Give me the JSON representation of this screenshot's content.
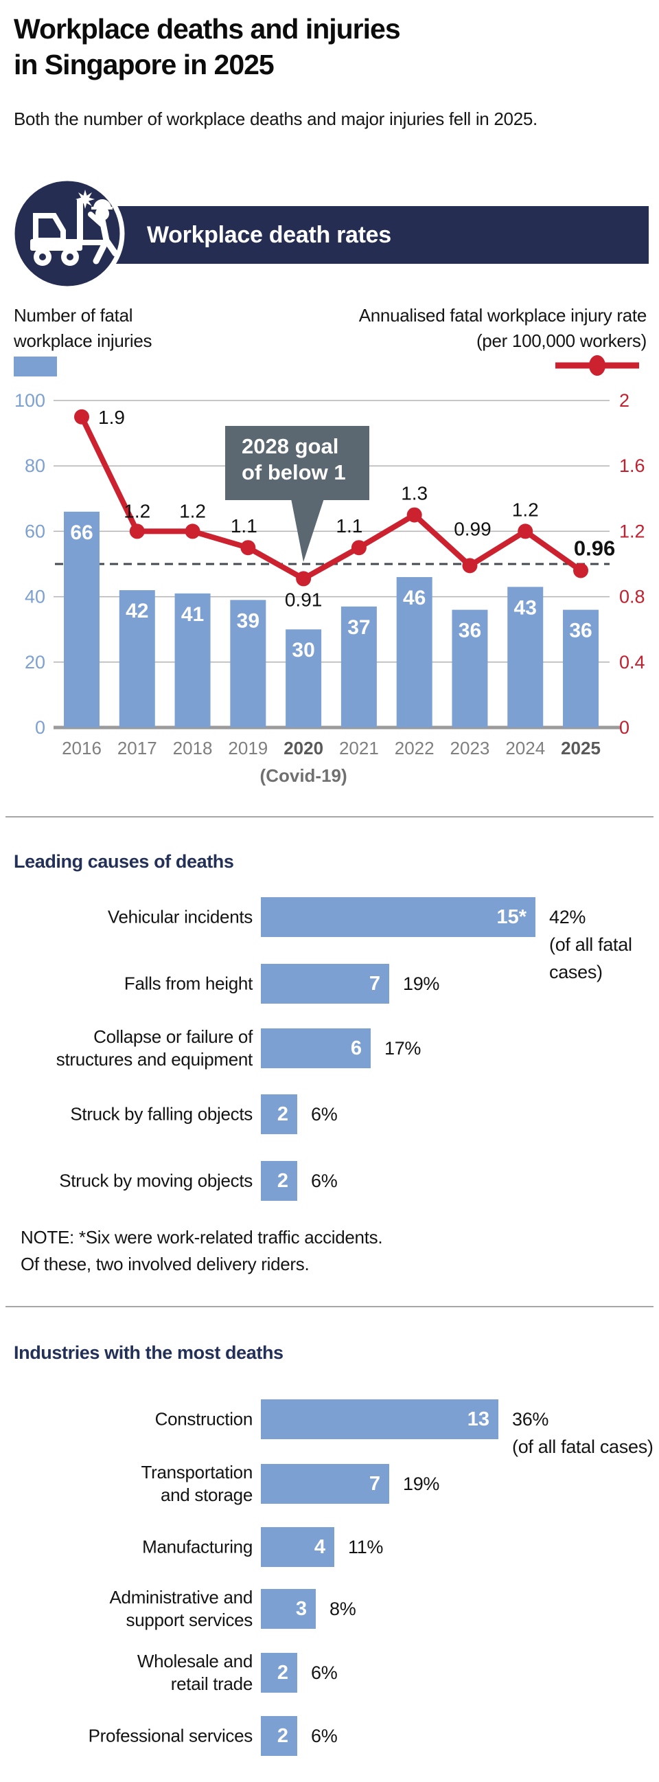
{
  "page": {
    "title": "Workplace deaths and injuries\nin Singapore in 2025",
    "subtitle": "Both the number of workplace deaths and major injuries fell in 2025.",
    "colors": {
      "navy": "#252e52",
      "heading_navy": "#233058",
      "bar_blue": "#7da0d2",
      "line_red": "#cc2230",
      "right_axis_red": "#c2202f",
      "callout_slate": "#5b6771",
      "grid_gray": "#b3b3b3",
      "axis_line_gray": "#9b9b9b",
      "goal_dash": "#454b50",
      "year_gray": "#7f7f7f",
      "year_bold_gray": "#595959",
      "covid_gray": "#707070",
      "text_black": "#141414"
    }
  },
  "banner": {
    "icon": "forklift-collision-icon",
    "label": "Workplace death rates"
  },
  "legend": {
    "bars_label": "Number of fatal\nworkplace injuries",
    "line_label": "Annualised fatal workplace injury rate\n(per 100,000 workers)"
  },
  "chart_data": [
    {
      "id": "workplace-death-rates",
      "type": "bar+line",
      "title": "Workplace death rates",
      "categories": [
        "2016",
        "2017",
        "2018",
        "2019",
        "2020",
        "2021",
        "2022",
        "2023",
        "2024",
        "2025"
      ],
      "bold_categories": [
        "2020",
        "2025"
      ],
      "category_note": {
        "category": "2020",
        "label": "(Covid-19)"
      },
      "series": [
        {
          "name": "Number of fatal workplace injuries",
          "type": "bar",
          "axis": "left",
          "values": [
            66,
            42,
            41,
            39,
            30,
            37,
            46,
            36,
            43,
            36
          ]
        },
        {
          "name": "Annualised fatal workplace injury rate (per 100,000 workers)",
          "type": "line",
          "axis": "right",
          "values": [
            1.9,
            1.2,
            1.2,
            1.1,
            0.91,
            1.1,
            1.3,
            0.99,
            1.2,
            0.96
          ],
          "labels": [
            "1.9",
            "1.2",
            "1.2",
            "1.1",
            "0.91",
            "1.1",
            "1.3",
            "0.99",
            "1.2",
            "0.96"
          ]
        }
      ],
      "left_axis": {
        "ticks": [
          100,
          80,
          60,
          40,
          20,
          0
        ],
        "range": [
          0,
          100
        ]
      },
      "right_axis": {
        "ticks": [
          "2",
          "1.6",
          "1.2",
          "0.8",
          "0.4",
          "0"
        ],
        "range": [
          0,
          2
        ]
      },
      "goal_line": {
        "value": 1,
        "label": "2028 goal\nof below 1"
      },
      "grid": true,
      "legend_position": "top"
    },
    {
      "id": "leading-causes",
      "type": "bar",
      "title": "Leading causes of deaths",
      "categories": [
        [
          "Vehicular incidents"
        ],
        [
          "Falls from height"
        ],
        [
          "Collapse or failure of",
          "structures and equipment"
        ],
        [
          "Struck by falling objects"
        ],
        [
          "Struck by moving objects"
        ]
      ],
      "values": [
        15,
        7,
        6,
        2,
        2
      ],
      "value_labels": [
        "15*",
        "7",
        "6",
        "2",
        "2"
      ],
      "pct_labels": [
        [
          "42%",
          "(of all fatal",
          "cases)"
        ],
        [
          "19%"
        ],
        [
          "17%"
        ],
        [
          "6%"
        ],
        [
          "6%"
        ]
      ],
      "note": "NOTE: *Six were work-related traffic accidents.\nOf these, two involved delivery riders."
    },
    {
      "id": "industries-most-deaths",
      "type": "bar",
      "title": "Industries with the most deaths",
      "categories": [
        [
          "Construction"
        ],
        [
          "Transportation",
          "and storage"
        ],
        [
          "Manufacturing"
        ],
        [
          "Administrative and",
          "support services"
        ],
        [
          "Wholesale and",
          "retail trade"
        ],
        [
          "Professional services"
        ]
      ],
      "values": [
        13,
        7,
        4,
        3,
        2,
        2
      ],
      "value_labels": [
        "13",
        "7",
        "4",
        "3",
        "2",
        "2"
      ],
      "pct_labels": [
        [
          "36%",
          "(of all fatal cases)"
        ],
        [
          "19%"
        ],
        [
          "11%"
        ],
        [
          "8%"
        ],
        [
          "6%"
        ],
        [
          "6%"
        ]
      ]
    }
  ]
}
